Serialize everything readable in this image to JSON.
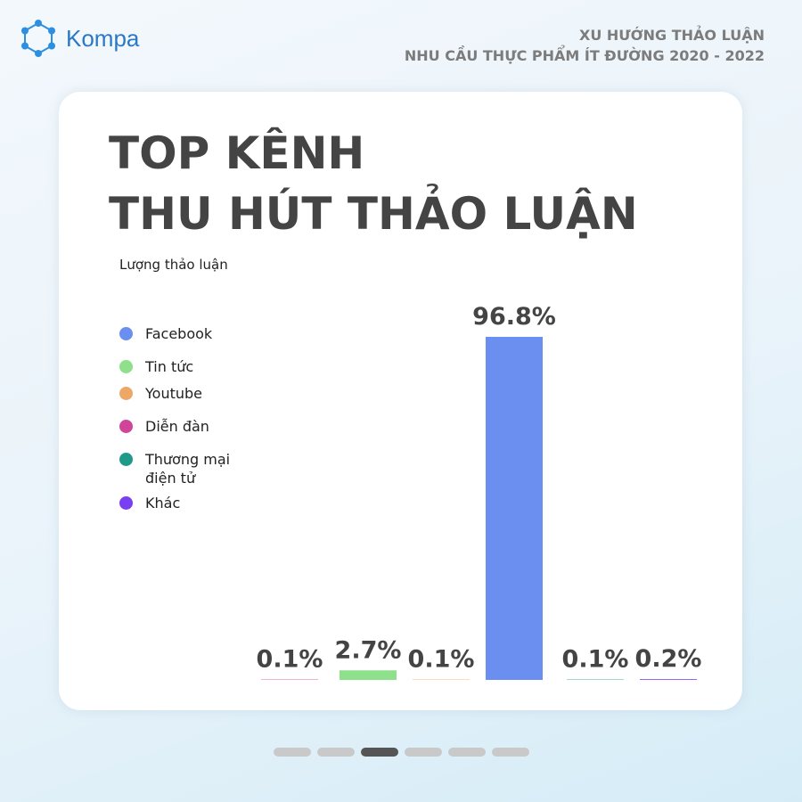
{
  "header": {
    "brand": "Kompa",
    "subtitle_1": "XU HƯỚNG THẢO LUẬN",
    "subtitle_2": "NHU CẦU THỰC PHẨM ÍT ĐƯỜNG 2020 - 2022"
  },
  "chart_data": {
    "type": "bar",
    "title_1": "TOP KÊNH",
    "title_2": "THU HÚT THẢO LUẬN",
    "y_label": "Lượng thảo luận",
    "series": [
      {
        "name": "Facebook",
        "color": "#6b8ff0",
        "values": [
          96.8
        ],
        "value_labels": [
          "96.8%"
        ]
      },
      {
        "name": "Tin tức",
        "color": "#8fe08a",
        "values": [
          2.7
        ],
        "value_labels": [
          "2.7%"
        ]
      },
      {
        "name": "Youtube",
        "color": "#eda766",
        "values": [
          0.1
        ],
        "value_labels": [
          "0.1%"
        ]
      },
      {
        "name": "Diễn đàn",
        "color": "#d0459a",
        "values": [
          0.1
        ],
        "value_labels": [
          "0.1%"
        ]
      },
      {
        "name": "Thương mại điện tử",
        "color": "#1f9a8a",
        "values": [
          0.1
        ],
        "value_labels": [
          "0.1%"
        ]
      },
      {
        "name": "Khác",
        "color": "#7a3ff0",
        "values": [
          0.2
        ],
        "value_labels": [
          "0.2%"
        ]
      }
    ]
  }
}
